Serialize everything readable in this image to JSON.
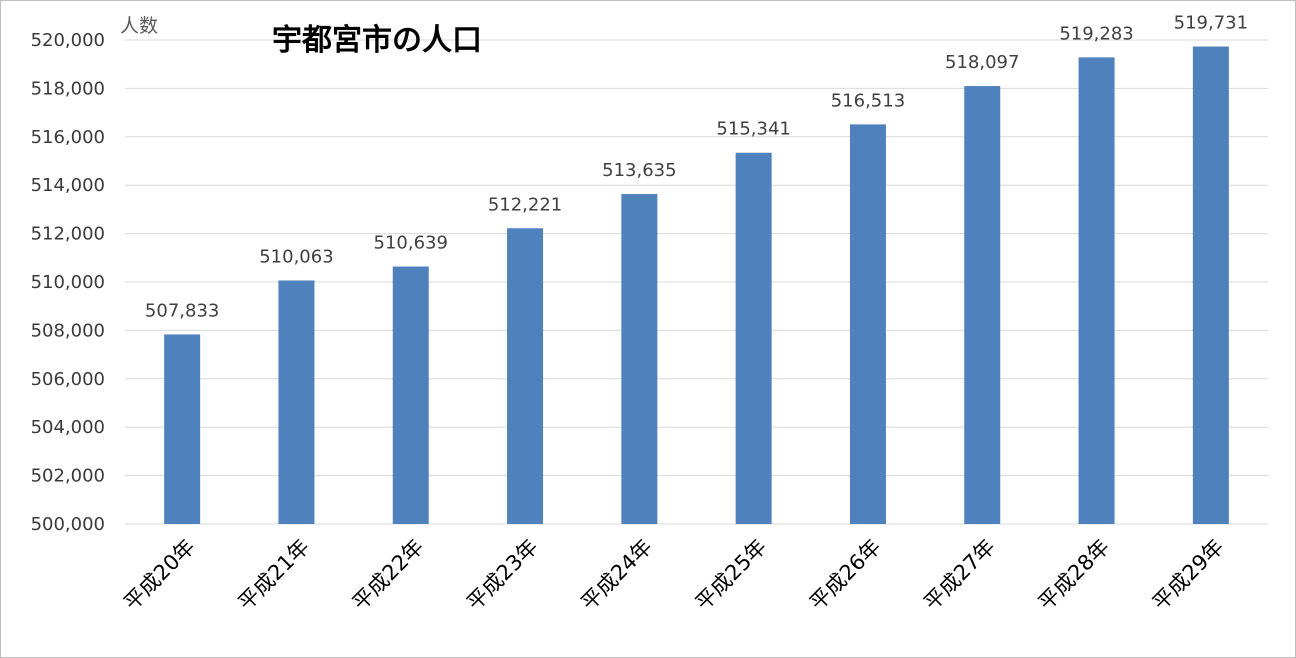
{
  "chart_data": {
    "type": "bar",
    "title": "宇都宮市の人口",
    "ylabel": "人数",
    "xlabel": "",
    "categories": [
      "平成20年",
      "平成21年",
      "平成22年",
      "平成23年",
      "平成24年",
      "平成25年",
      "平成26年",
      "平成27年",
      "平成28年",
      "平成29年"
    ],
    "values": [
      507833,
      510063,
      510639,
      512221,
      513635,
      515341,
      516513,
      518097,
      519283,
      519731
    ],
    "data_labels": [
      "507,833",
      "510,063",
      "510,639",
      "512,221",
      "513,635",
      "515,341",
      "516,513",
      "518,097",
      "519,283",
      "519,731"
    ],
    "ylim": [
      500000,
      520000
    ],
    "yticks": [
      500000,
      502000,
      504000,
      506000,
      508000,
      510000,
      512000,
      514000,
      516000,
      518000,
      520000
    ],
    "ytick_labels": [
      "500,000",
      "502,000",
      "504,000",
      "506,000",
      "508,000",
      "510,000",
      "512,000",
      "514,000",
      "516,000",
      "518,000",
      "520,000"
    ],
    "grid": true,
    "legend": "none",
    "bar_color": "#4f81bd",
    "grid_color": "#d9d9d9"
  }
}
